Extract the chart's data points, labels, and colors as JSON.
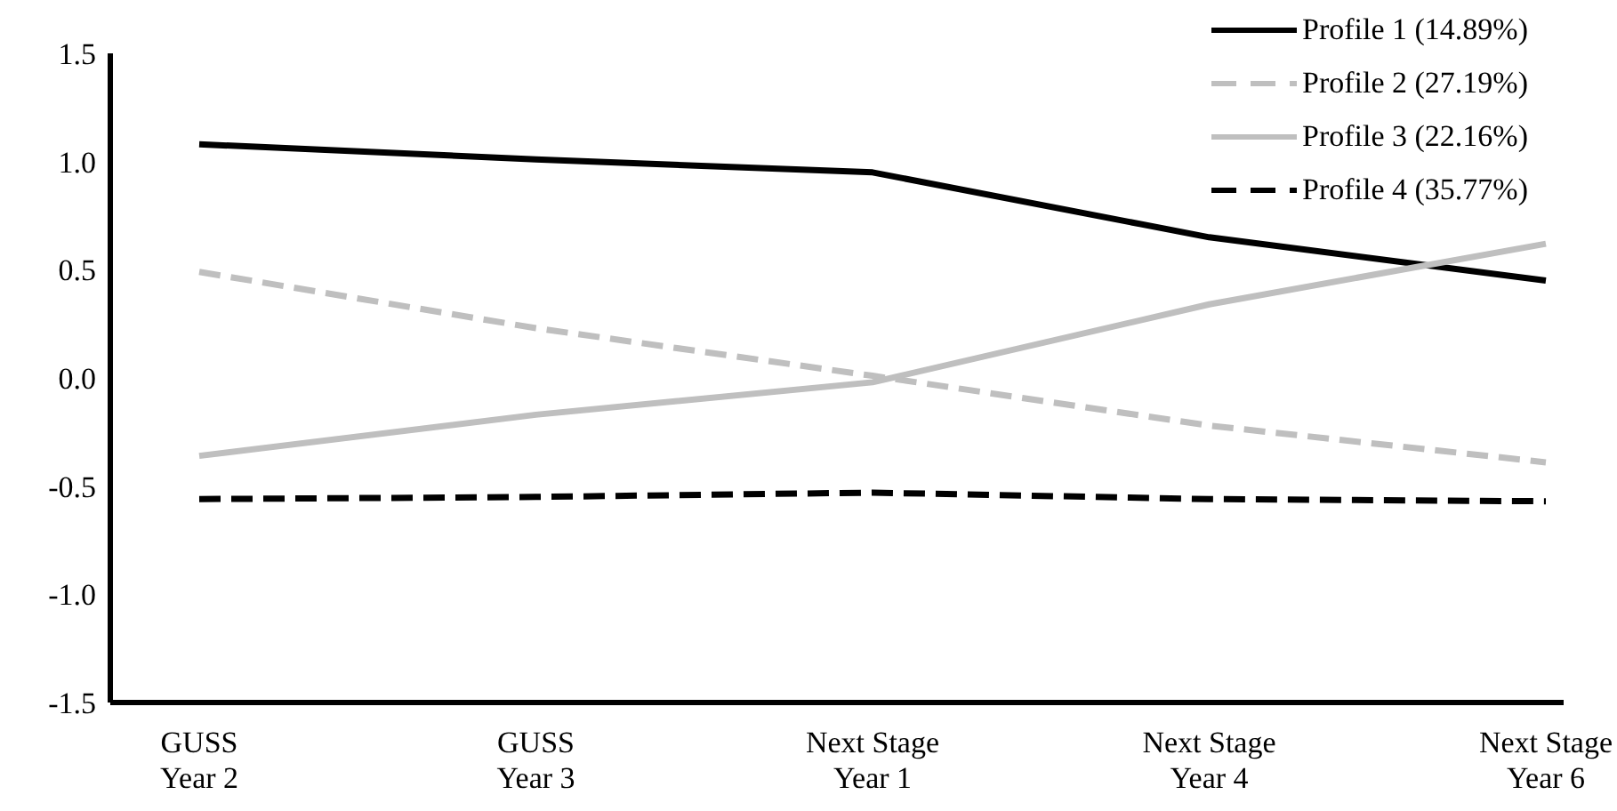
{
  "chart_data": {
    "type": "line",
    "categories": [
      "GUSS Year 2",
      "GUSS Year 3",
      "Next Stage Year 1",
      "Next Stage Year 4",
      "Next Stage Year 6"
    ],
    "ylim": [
      -1.5,
      1.5
    ],
    "yticks": [
      {
        "value": -1.5,
        "label": "-1.5"
      },
      {
        "value": -1,
        "label": "-1.0"
      },
      {
        "value": -0.5,
        "label": "-0.5"
      },
      {
        "value": 0,
        "label": "0.0"
      },
      {
        "value": 0.5,
        "label": "0.5"
      },
      {
        "value": 1,
        "label": "1.0"
      },
      {
        "value": 1.5,
        "label": "1.5"
      }
    ],
    "legend": "top right",
    "marker": "none",
    "series": [
      {
        "name": "Profile 1 (14.89%)",
        "color": "#000000",
        "line_style": "solid",
        "values": [
          1.08,
          1.01,
          0.95,
          0.65,
          0.45
        ]
      },
      {
        "name": "Profile 2 (27.19%)",
        "color": "#bfbfbf",
        "line_style": "dashed",
        "values": [
          0.49,
          0.23,
          0.01,
          -0.22,
          -0.39
        ]
      },
      {
        "name": "Profile 3 (22.16%)",
        "color": "#bfbfbf",
        "line_style": "solid",
        "values": [
          -0.36,
          -0.17,
          -0.02,
          0.34,
          0.62
        ]
      },
      {
        "name": "Profile 4 (35.77%)",
        "color": "#000000",
        "line_style": "dashed",
        "values": [
          -0.56,
          -0.55,
          -0.53,
          -0.56,
          -0.57
        ]
      }
    ]
  }
}
